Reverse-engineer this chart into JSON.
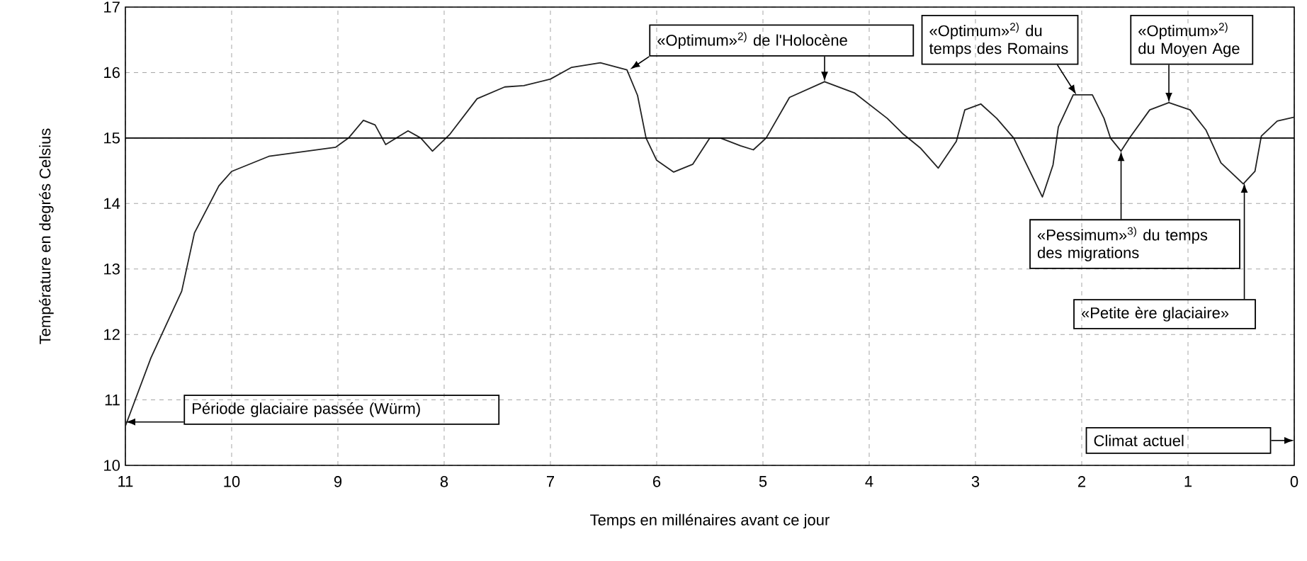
{
  "chart_data": {
    "type": "line",
    "xlabel": "Temps en millénaires avant ce jour",
    "ylabel": "Température en degrés Celsius",
    "x": [
      11.0,
      10.76,
      10.47,
      10.35,
      10.12,
      10.0,
      9.65,
      9.02,
      8.9,
      8.76,
      8.65,
      8.55,
      8.45,
      8.34,
      8.22,
      8.11,
      7.95,
      7.69,
      7.43,
      7.25,
      7.0,
      6.8,
      6.53,
      6.28,
      6.18,
      6.1,
      6.0,
      5.84,
      5.66,
      5.5,
      5.4,
      5.21,
      5.09,
      4.97,
      4.75,
      4.42,
      4.14,
      3.83,
      3.68,
      3.52,
      3.35,
      3.18,
      3.1,
      2.95,
      2.8,
      2.64,
      2.37,
      2.27,
      2.22,
      2.08,
      1.9,
      1.79,
      1.73,
      1.63,
      1.55,
      1.36,
      1.18,
      0.98,
      0.83,
      0.69,
      0.48,
      0.37,
      0.31,
      0.16,
      0.0
    ],
    "series": [
      {
        "color": "#222222",
        "values": [
          10.6,
          11.64,
          12.66,
          13.55,
          14.27,
          14.49,
          14.72,
          14.86,
          15.0,
          15.27,
          15.2,
          14.9,
          15.0,
          15.11,
          15.0,
          14.8,
          15.05,
          15.6,
          15.78,
          15.8,
          15.9,
          16.08,
          16.15,
          16.04,
          15.65,
          15.0,
          14.66,
          14.48,
          14.6,
          15.0,
          15.0,
          14.88,
          14.82,
          15.0,
          15.62,
          15.86,
          15.69,
          15.3,
          15.06,
          14.85,
          14.54,
          14.95,
          15.43,
          15.52,
          15.3,
          15.0,
          14.1,
          14.59,
          15.17,
          15.66,
          15.66,
          15.3,
          15.0,
          14.8,
          15.0,
          15.43,
          15.54,
          15.43,
          15.12,
          14.62,
          14.3,
          14.49,
          15.03,
          15.26,
          15.32
        ]
      }
    ],
    "xlim": [
      11,
      0
    ],
    "ylim": [
      10,
      17
    ],
    "xticks": [
      11,
      10,
      9,
      8,
      7,
      6,
      5,
      4,
      3,
      2,
      1,
      0
    ],
    "yticks": [
      10,
      11,
      12,
      13,
      14,
      15,
      16,
      17
    ],
    "grid": true,
    "marker": "none",
    "line_style": "solid",
    "ref_lines": [
      {
        "axis": "y",
        "value": 15,
        "color": "#000000"
      }
    ],
    "annotations": [
      {
        "text": "«Optimum»$^{2)}$ de l'Holocène",
        "x": 6.25,
        "y": 16.05
      },
      {
        "text": "«Optimum»$^{2)}$ du temps des Romains",
        "x": 2.05,
        "y": 15.66
      },
      {
        "text": "«Optimum»$^{2)}$ du Moyen Age",
        "x": 1.18,
        "y": 15.54
      },
      "«Pessimum»$^{3)}$ du temps des migrations",
      "«Petite ère glaciaire»",
      "Période glaciaire passée (Würm)",
      "Climat actuel"
    ]
  }
}
